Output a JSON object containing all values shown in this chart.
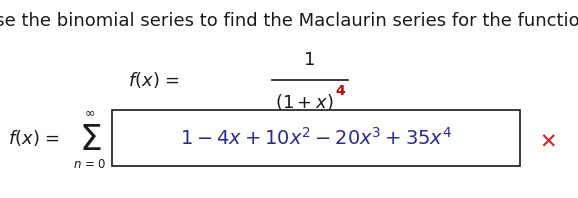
{
  "title_text": "Use the binomial series to find the Maclaurin series for the function.",
  "title_color": "#1a1a1a",
  "title_fontsize": 13.0,
  "background_color": "#ffffff",
  "text_color": "#1a1a1a",
  "series_color": "#2b2b8b",
  "fx_exp_color": "#cc0000",
  "cross_color": "#cc2222",
  "font_family": "DejaVu Sans",
  "fig_width": 5.78,
  "fig_height": 1.98,
  "dpi": 100
}
